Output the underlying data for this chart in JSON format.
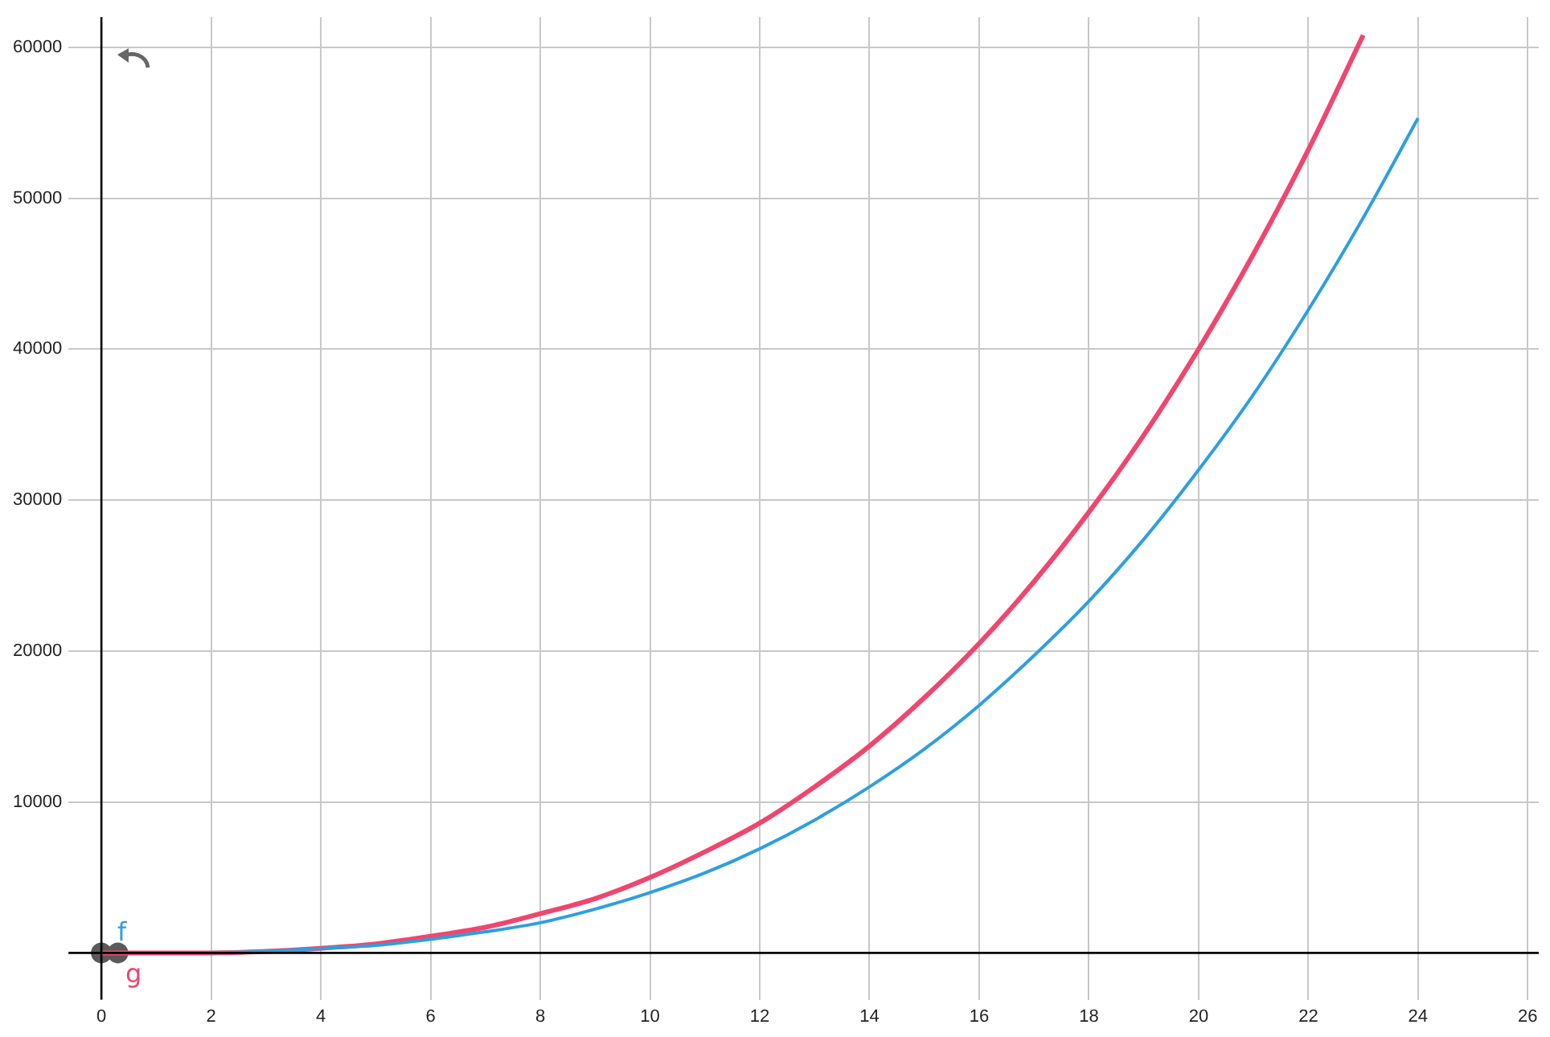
{
  "chart_data": {
    "type": "line",
    "x": [
      0,
      1,
      2,
      3,
      4,
      5,
      6,
      7,
      8,
      9,
      10,
      11,
      12,
      13,
      14,
      15,
      16,
      17,
      18,
      19,
      20,
      21,
      22,
      23,
      24
    ],
    "series": [
      {
        "name": "f",
        "color": "#2d9fe0",
        "values": [
          null,
          null,
          0,
          100,
          300,
          500,
          900,
          1400,
          2000,
          2900,
          4000,
          5300,
          6900,
          8800,
          11000,
          13500,
          16400,
          19700,
          23300,
          27400,
          32000,
          37000,
          42600,
          48700,
          55300
        ]
      },
      {
        "name": "g",
        "color": "#f0466e",
        "values": [
          0,
          0,
          0,
          100,
          300,
          600,
          1100,
          1700,
          2600,
          3600,
          5000,
          6700,
          8600,
          11000,
          13700,
          16900,
          20500,
          24600,
          29200,
          34300,
          40000,
          46300,
          53200,
          60800,
          null
        ]
      },
      {
        "type": "scatter",
        "marker": "circle",
        "color": "#5a5a5a",
        "x": [
          0,
          0.3
        ],
        "values": [
          0,
          0
        ]
      }
    ],
    "xlim": [
      -0.6,
      26.2
    ],
    "ylim": [
      -3100,
      62000
    ],
    "xticks": [
      0,
      2,
      4,
      6,
      8,
      10,
      12,
      14,
      16,
      18,
      20,
      22,
      24,
      26
    ],
    "yticks": [
      10000,
      20000,
      30000,
      40000,
      50000,
      60000
    ],
    "grid": true,
    "legend": false,
    "marker": "none",
    "line_style": "solid"
  }
}
